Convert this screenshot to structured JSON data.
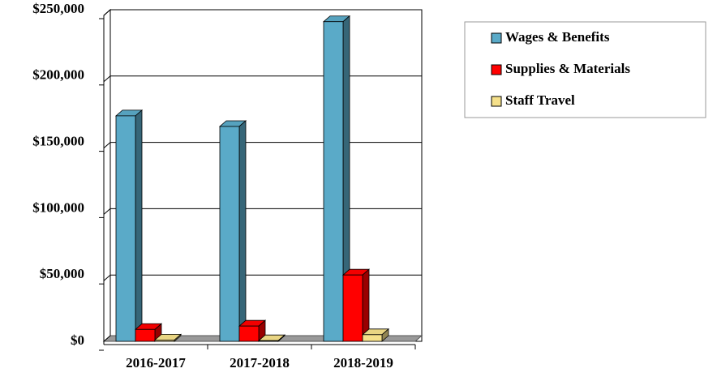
{
  "chart_data": {
    "type": "bar3d",
    "categories": [
      "2016-2017",
      "2017-2018",
      "2018-2019"
    ],
    "series": [
      {
        "name": "Wages & Benefits",
        "color": "#5aaac8",
        "values": [
          170000,
          162000,
          241000
        ]
      },
      {
        "name": "Supplies & Materials",
        "color": "#ff0000",
        "values": [
          9000,
          11500,
          50000
        ]
      },
      {
        "name": "Staff Travel",
        "color": "#f5e08a",
        "values": [
          1000,
          500,
          5000
        ]
      }
    ],
    "ylim": [
      0,
      250000
    ],
    "yticks": [
      {
        "value": 0,
        "label": "$0"
      },
      {
        "value": 50000,
        "label": "$50,000"
      },
      {
        "value": 100000,
        "label": "$100,000"
      },
      {
        "value": 150000,
        "label": "$150,000"
      },
      {
        "value": 200000,
        "label": "$200,000"
      },
      {
        "value": 250000,
        "label": "$250,000"
      }
    ],
    "grid": true,
    "legend": "right"
  }
}
